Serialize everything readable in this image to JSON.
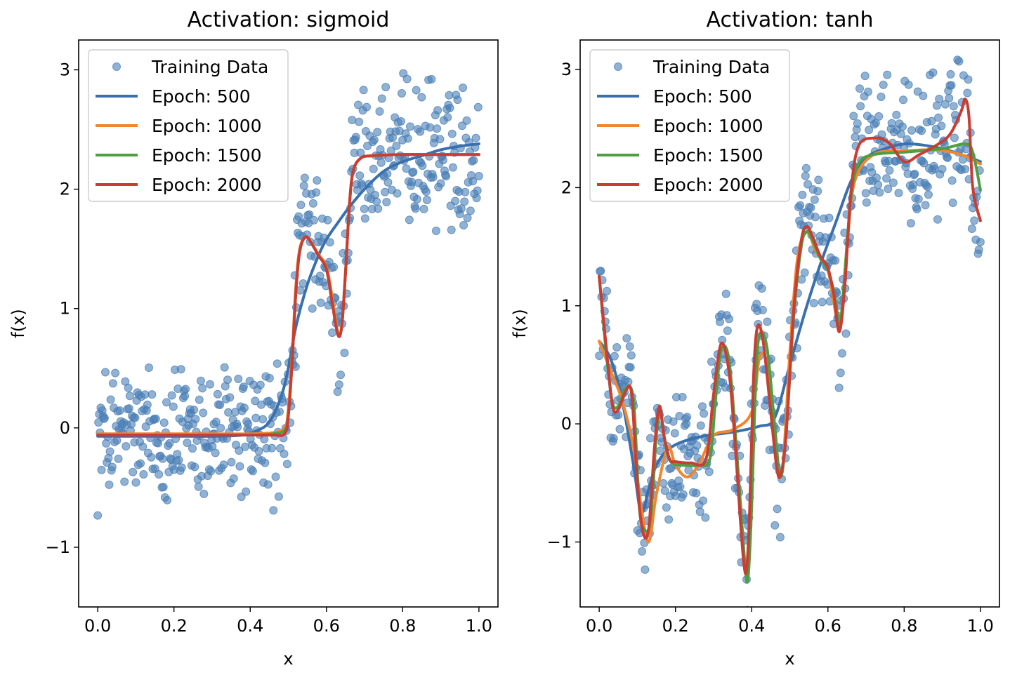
{
  "chart_data": [
    {
      "type": "line",
      "title": "Activation: sigmoid",
      "xlabel": "x",
      "ylabel": "f(x)",
      "xlim": [
        -0.05,
        1.05
      ],
      "ylim": [
        -1.5,
        3.25
      ],
      "xticks": [
        "0.0",
        "0.2",
        "0.4",
        "0.6",
        "0.8",
        "1.0"
      ],
      "yticks": [
        "−1",
        "0",
        "1",
        "2",
        "3"
      ],
      "legend_position": "top-left",
      "legend": [
        "Training Data",
        "Epoch: 500",
        "Epoch: 1000",
        "Epoch: 1500",
        "Epoch: 2000"
      ],
      "scatter_color": "#4a7fb5",
      "series": [
        {
          "name": "Epoch: 500",
          "color": "#3a70ad",
          "x": [
            0,
            0.1,
            0.2,
            0.3,
            0.38,
            0.42,
            0.45,
            0.48,
            0.5,
            0.52,
            0.55,
            0.58,
            0.6,
            0.63,
            0.66,
            0.7,
            0.75,
            0.8,
            0.85,
            0.9,
            0.95,
            1.0
          ],
          "y": [
            -0.07,
            -0.07,
            -0.07,
            -0.07,
            -0.06,
            -0.02,
            0.05,
            0.25,
            0.5,
            0.85,
            1.2,
            1.45,
            1.58,
            1.72,
            1.85,
            2.0,
            2.15,
            2.23,
            2.28,
            2.33,
            2.36,
            2.38
          ]
        },
        {
          "name": "Epoch: 1000",
          "color": "#f0862f",
          "x": [
            0,
            0.1,
            0.2,
            0.3,
            0.4,
            0.46,
            0.49,
            0.5,
            0.51,
            0.52,
            0.53,
            0.545,
            0.56,
            0.58,
            0.6,
            0.615,
            0.63,
            0.64,
            0.65,
            0.66,
            0.67,
            0.69,
            0.72,
            0.8,
            0.9,
            1.0
          ],
          "y": [
            -0.05,
            -0.05,
            -0.05,
            -0.05,
            -0.05,
            -0.04,
            0.0,
            0.15,
            0.6,
            1.2,
            1.5,
            1.6,
            1.55,
            1.45,
            1.35,
            1.1,
            0.8,
            0.85,
            1.3,
            1.85,
            2.15,
            2.26,
            2.28,
            2.29,
            2.29,
            2.29
          ]
        },
        {
          "name": "Epoch: 1500",
          "color": "#4f9e43",
          "x": [
            0,
            0.1,
            0.2,
            0.3,
            0.4,
            0.46,
            0.49,
            0.5,
            0.51,
            0.52,
            0.53,
            0.545,
            0.56,
            0.58,
            0.6,
            0.615,
            0.63,
            0.64,
            0.65,
            0.66,
            0.67,
            0.69,
            0.72,
            0.8,
            0.9,
            1.0
          ],
          "y": [
            -0.06,
            -0.06,
            -0.06,
            -0.06,
            -0.06,
            -0.05,
            -0.02,
            0.1,
            0.55,
            1.15,
            1.48,
            1.6,
            1.55,
            1.44,
            1.33,
            1.05,
            0.79,
            0.85,
            1.3,
            1.85,
            2.15,
            2.26,
            2.28,
            2.29,
            2.29,
            2.29
          ]
        },
        {
          "name": "Epoch: 2000",
          "color": "#c93d33",
          "x": [
            0,
            0.1,
            0.2,
            0.3,
            0.4,
            0.46,
            0.49,
            0.5,
            0.51,
            0.52,
            0.53,
            0.545,
            0.56,
            0.58,
            0.6,
            0.615,
            0.63,
            0.64,
            0.65,
            0.66,
            0.67,
            0.69,
            0.72,
            0.8,
            0.9,
            1.0
          ],
          "y": [
            -0.06,
            -0.06,
            -0.06,
            -0.06,
            -0.06,
            -0.06,
            -0.05,
            0.1,
            0.55,
            1.15,
            1.48,
            1.6,
            1.55,
            1.44,
            1.33,
            1.05,
            0.78,
            0.85,
            1.3,
            1.85,
            2.15,
            2.26,
            2.28,
            2.29,
            2.29,
            2.29
          ]
        }
      ]
    },
    {
      "type": "line",
      "title": "Activation: tanh",
      "xlabel": "x",
      "ylabel": "f(x)",
      "xlim": [
        -0.05,
        1.05
      ],
      "ylim": [
        -1.55,
        3.25
      ],
      "xticks": [
        "0.0",
        "0.2",
        "0.4",
        "0.6",
        "0.8",
        "1.0"
      ],
      "yticks": [
        "−1",
        "0",
        "1",
        "2",
        "3"
      ],
      "legend_position": "top-left",
      "legend": [
        "Training Data",
        "Epoch: 500",
        "Epoch: 1000",
        "Epoch: 1500",
        "Epoch: 2000"
      ],
      "scatter_color": "#4a7fb5",
      "series": [
        {
          "name": "Epoch: 500",
          "color": "#3a70ad",
          "x": [
            0,
            0.03,
            0.06,
            0.09,
            0.11,
            0.13,
            0.15,
            0.18,
            0.22,
            0.28,
            0.35,
            0.42,
            0.46,
            0.5,
            0.54,
            0.58,
            0.62,
            0.66,
            0.7,
            0.75,
            0.8,
            0.85,
            0.9,
            0.95,
            1.0
          ],
          "y": [
            0.7,
            0.55,
            0.2,
            -0.35,
            -0.75,
            -0.55,
            -0.35,
            -0.22,
            -0.15,
            -0.1,
            -0.07,
            -0.02,
            0.05,
            0.5,
            0.95,
            1.35,
            1.7,
            2.05,
            2.25,
            2.33,
            2.37,
            2.36,
            2.33,
            2.28,
            2.22
          ]
        },
        {
          "name": "Epoch: 1000",
          "color": "#f0862f",
          "x": [
            0,
            0.03,
            0.06,
            0.09,
            0.11,
            0.13,
            0.15,
            0.18,
            0.2,
            0.23,
            0.26,
            0.3,
            0.35,
            0.4,
            0.42,
            0.44,
            0.46,
            0.48,
            0.5,
            0.52,
            0.545,
            0.57,
            0.6,
            0.63,
            0.65,
            0.67,
            0.72,
            0.8,
            0.88,
            0.95,
            1.0
          ],
          "y": [
            0.7,
            0.45,
            0.2,
            -0.2,
            -0.7,
            -1.0,
            -0.6,
            -0.2,
            -0.35,
            -0.45,
            -0.35,
            -0.1,
            -0.05,
            0.1,
            0.55,
            0.5,
            -0.2,
            -0.4,
            0.6,
            1.4,
            1.62,
            1.45,
            1.3,
            0.85,
            1.5,
            2.05,
            2.28,
            2.31,
            2.32,
            2.28,
            2.2
          ]
        },
        {
          "name": "Epoch: 1500",
          "color": "#4f9e43",
          "x": [
            0,
            0.02,
            0.035,
            0.05,
            0.07,
            0.09,
            0.105,
            0.12,
            0.135,
            0.15,
            0.16,
            0.175,
            0.19,
            0.22,
            0.26,
            0.29,
            0.305,
            0.32,
            0.34,
            0.36,
            0.38,
            0.39,
            0.4,
            0.41,
            0.42,
            0.44,
            0.46,
            0.475,
            0.49,
            0.51,
            0.53,
            0.545,
            0.56,
            0.58,
            0.6,
            0.62,
            0.63,
            0.64,
            0.66,
            0.68,
            0.72,
            0.8,
            0.9,
            0.96,
            0.98,
            1.0
          ],
          "y": [
            1.25,
            0.55,
            0.18,
            0.15,
            0.3,
            0.2,
            -0.7,
            -0.9,
            -0.8,
            -0.1,
            0.1,
            -0.2,
            -0.33,
            -0.35,
            -0.35,
            -0.3,
            0.2,
            0.62,
            0.55,
            -0.2,
            -1.1,
            -1.32,
            -0.7,
            0.3,
            0.75,
            0.65,
            0.0,
            -0.45,
            -0.1,
            0.9,
            1.5,
            1.63,
            1.55,
            1.4,
            1.3,
            1.05,
            0.8,
            1.1,
            1.9,
            2.2,
            2.28,
            2.3,
            2.33,
            2.37,
            2.3,
            1.98
          ]
        },
        {
          "name": "Epoch: 2000",
          "color": "#c93d33",
          "x": [
            0,
            0.02,
            0.035,
            0.05,
            0.07,
            0.085,
            0.1,
            0.115,
            0.13,
            0.145,
            0.158,
            0.17,
            0.185,
            0.2,
            0.24,
            0.28,
            0.3,
            0.32,
            0.34,
            0.355,
            0.37,
            0.38,
            0.387,
            0.395,
            0.405,
            0.415,
            0.43,
            0.45,
            0.465,
            0.475,
            0.49,
            0.51,
            0.53,
            0.545,
            0.56,
            0.58,
            0.6,
            0.615,
            0.63,
            0.645,
            0.66,
            0.68,
            0.72,
            0.76,
            0.8,
            0.84,
            0.88,
            0.92,
            0.95,
            0.96,
            0.97,
            0.98,
            1.0
          ],
          "y": [
            1.25,
            0.6,
            0.15,
            0.12,
            0.28,
            0.25,
            -0.5,
            -0.92,
            -0.88,
            -0.2,
            0.15,
            -0.1,
            -0.3,
            -0.32,
            -0.33,
            -0.3,
            0.25,
            0.68,
            0.45,
            -0.1,
            -0.8,
            -1.2,
            -1.22,
            -0.7,
            0.4,
            0.82,
            0.7,
            0.1,
            -0.35,
            -0.44,
            -0.1,
            0.95,
            1.55,
            1.67,
            1.58,
            1.42,
            1.32,
            1.1,
            0.78,
            1.2,
            1.95,
            2.35,
            2.42,
            2.38,
            2.22,
            2.28,
            2.35,
            2.45,
            2.65,
            2.75,
            2.6,
            2.0,
            1.72
          ]
        }
      ]
    }
  ]
}
